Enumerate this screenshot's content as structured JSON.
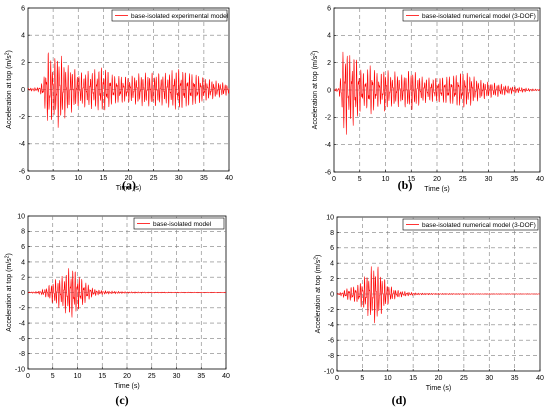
{
  "colors": {
    "series": "#ff0000",
    "grid": "#7f7f7f",
    "axis": "#000000"
  },
  "chart_data": [
    {
      "type": "line",
      "panel_label": "(a)",
      "title": "",
      "xlabel": "Time (s)",
      "ylabel": "Acceleration at top (m/s",
      "ylabel_sup": "2",
      "ylabel_end": ")",
      "xlim": [
        0,
        40
      ],
      "ylim": [
        -6,
        6
      ],
      "xticks": [
        0,
        5,
        10,
        15,
        20,
        25,
        30,
        35,
        40
      ],
      "yticks": [
        -6,
        -4,
        -2,
        0,
        2,
        4,
        6
      ],
      "grid": true,
      "legend_position": "top-right",
      "series": [
        {
          "name": "base-isolated experimental model",
          "envelope": [
            [
              0,
              0.1
            ],
            [
              2,
              0.15
            ],
            [
              3,
              0.6
            ],
            [
              4,
              3.0
            ],
            [
              5,
              2.2
            ],
            [
              6,
              2.9
            ],
            [
              7,
              2.3
            ],
            [
              8,
              1.8
            ],
            [
              9,
              1.7
            ],
            [
              10,
              1.3
            ],
            [
              12,
              1.4
            ],
            [
              14,
              1.6
            ],
            [
              15,
              1.8
            ],
            [
              17,
              1.1
            ],
            [
              20,
              1.0
            ],
            [
              22,
              1.2
            ],
            [
              25,
              1.3
            ],
            [
              27,
              1.2
            ],
            [
              29,
              1.5
            ],
            [
              30,
              1.6
            ],
            [
              32,
              1.3
            ],
            [
              34,
              1.1
            ],
            [
              36,
              0.8
            ],
            [
              38,
              0.6
            ],
            [
              40,
              0.4
            ]
          ]
        }
      ]
    },
    {
      "type": "line",
      "panel_label": "(b)",
      "title": "",
      "xlabel": "Time (s)",
      "ylabel": "Acceleration at top (m/s",
      "ylabel_sup": "2",
      "ylabel_end": ")",
      "xlim": [
        0,
        40
      ],
      "ylim": [
        -6,
        6
      ],
      "xticks": [
        0,
        5,
        10,
        15,
        20,
        25,
        30,
        35,
        40
      ],
      "yticks": [
        -6,
        -4,
        -2,
        0,
        2,
        4,
        6
      ],
      "grid": true,
      "legend_position": "top-right",
      "series": [
        {
          "name": "base-isolated numerical model (3-DOF)",
          "envelope": [
            [
              0,
              0.05
            ],
            [
              1,
              0.2
            ],
            [
              2,
              3.8
            ],
            [
              3,
              2.6
            ],
            [
              4,
              2.8
            ],
            [
              5,
              1.8
            ],
            [
              6,
              1.2
            ],
            [
              7,
              2.0
            ],
            [
              8,
              1.5
            ],
            [
              9,
              1.2
            ],
            [
              10,
              1.8
            ],
            [
              11,
              1.2
            ],
            [
              12,
              1.4
            ],
            [
              13,
              1.1
            ],
            [
              15,
              1.6
            ],
            [
              17,
              1.0
            ],
            [
              19,
              0.9
            ],
            [
              21,
              1.0
            ],
            [
              23,
              1.1
            ],
            [
              25,
              1.4
            ],
            [
              26,
              1.3
            ],
            [
              28,
              0.8
            ],
            [
              30,
              0.6
            ],
            [
              32,
              0.5
            ],
            [
              34,
              0.3
            ],
            [
              36,
              0.2
            ],
            [
              38,
              0.1
            ],
            [
              40,
              0.05
            ]
          ]
        }
      ]
    },
    {
      "type": "line",
      "panel_label": "(c)",
      "title": "",
      "xlabel": "Time (s)",
      "ylabel": "Acceleration at top (m/s",
      "ylabel_sup": "2",
      "ylabel_end": ")",
      "xlim": [
        0,
        40
      ],
      "ylim": [
        -10,
        10
      ],
      "xticks": [
        0,
        5,
        10,
        15,
        20,
        25,
        30,
        35,
        40
      ],
      "yticks": [
        -10,
        -8,
        -6,
        -4,
        -2,
        0,
        2,
        4,
        6,
        8,
        10
      ],
      "grid": true,
      "legend_position": "top-right",
      "series": [
        {
          "name": "base-isolated model",
          "envelope": [
            [
              0,
              0.05
            ],
            [
              2,
              0.15
            ],
            [
              3,
              0.4
            ],
            [
              4,
              0.8
            ],
            [
              5,
              1.5
            ],
            [
              6,
              2.0
            ],
            [
              7,
              2.2
            ],
            [
              8,
              3.2
            ],
            [
              9,
              3.5
            ],
            [
              10,
              2.6
            ],
            [
              11,
              1.8
            ],
            [
              12,
              1.2
            ],
            [
              13,
              0.6
            ],
            [
              14,
              0.35
            ],
            [
              16,
              0.2
            ],
            [
              20,
              0.1
            ],
            [
              25,
              0.06
            ],
            [
              30,
              0.05
            ],
            [
              40,
              0.04
            ]
          ]
        }
      ]
    },
    {
      "type": "line",
      "panel_label": "(d)",
      "title": "",
      "xlabel": "Time (s)",
      "ylabel": "Acceleration at top (m/s",
      "ylabel_sup": "2",
      "ylabel_end": ")",
      "xlim": [
        0,
        40
      ],
      "ylim": [
        -10,
        10
      ],
      "xticks": [
        0,
        5,
        10,
        15,
        20,
        25,
        30,
        35,
        40
      ],
      "yticks": [
        -10,
        -8,
        -6,
        -4,
        -2,
        0,
        2,
        4,
        6,
        8,
        10
      ],
      "grid": true,
      "legend_position": "top-right",
      "series": [
        {
          "name": "base-isolated numerical model (3-DOF)",
          "envelope": [
            [
              0,
              0.05
            ],
            [
              1,
              0.3
            ],
            [
              2,
              0.8
            ],
            [
              3,
              1.0
            ],
            [
              4,
              1.2
            ],
            [
              5,
              2.0
            ],
            [
              6,
              2.8
            ],
            [
              7,
              3.9
            ],
            [
              8,
              3.8
            ],
            [
              9,
              2.4
            ],
            [
              10,
              1.4
            ],
            [
              11,
              0.8
            ],
            [
              12,
              0.5
            ],
            [
              14,
              0.25
            ],
            [
              16,
              0.12
            ],
            [
              20,
              0.08
            ],
            [
              25,
              0.05
            ],
            [
              30,
              0.04
            ],
            [
              40,
              0.03
            ]
          ]
        }
      ]
    }
  ]
}
